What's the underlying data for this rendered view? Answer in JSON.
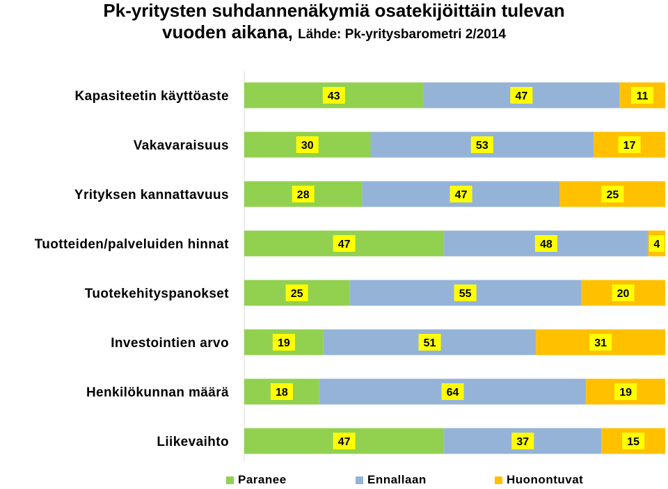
{
  "chart_data": {
    "type": "bar",
    "orientation": "horizontal",
    "stacked": "100%",
    "title": "Pk-yritysten suhdannenäkymiä osatekijöittäin tulevan vuoden aikana,",
    "subtitle": "Lähde: Pk-yritysbarometri 2/2014",
    "categories": [
      "Kapasiteetin käyttöaste",
      "Vakavaraisuus",
      "Yrityksen kannattavuus",
      "Tuotteiden/palveluiden hinnat",
      "Tuotekehityspanokset",
      "Investointien arvo",
      "Henkilökunnan määrä",
      "Liikevaihto"
    ],
    "series": [
      {
        "name": "Paranee",
        "color": "#92d050",
        "values": [
          43,
          30,
          28,
          47,
          25,
          19,
          18,
          47
        ]
      },
      {
        "name": "Ennallaan",
        "color": "#95b3d7",
        "values": [
          47,
          53,
          47,
          48,
          55,
          51,
          64,
          37
        ]
      },
      {
        "name": "Huonontuvat",
        "color": "#ffc000",
        "values": [
          11,
          17,
          25,
          4,
          20,
          31,
          19,
          15
        ]
      }
    ],
    "data_label_background": "#ffff00",
    "legend_position": "bottom",
    "grid": false
  }
}
